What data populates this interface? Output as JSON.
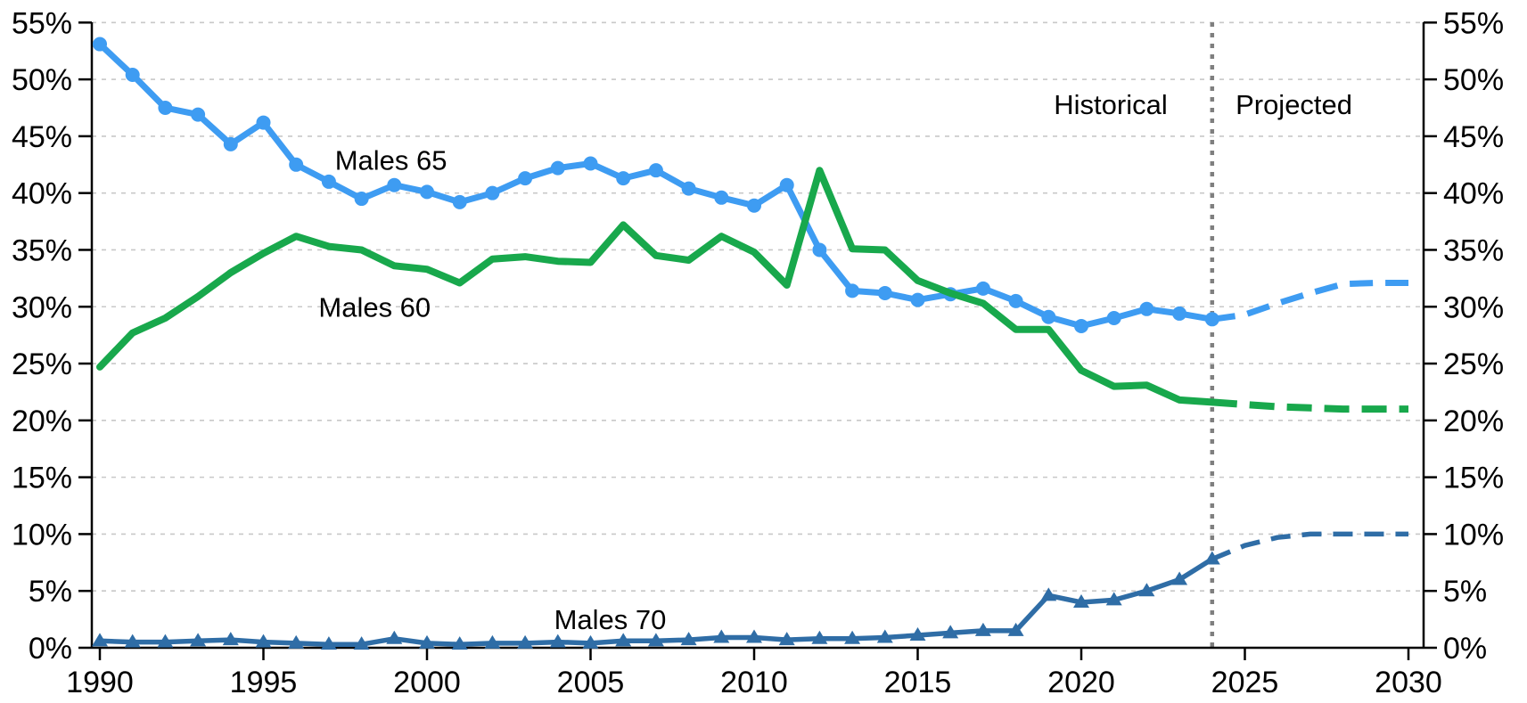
{
  "page": {
    "background": "#FFFFFF"
  },
  "chart_data": {
    "type": "line",
    "title": "",
    "x_axis": {
      "min": 1990,
      "max": 2030,
      "tick_years": [
        1990,
        1995,
        2000,
        2005,
        2010,
        2015,
        2020,
        2025,
        2030
      ],
      "tick_labels": [
        "1990",
        "1995",
        "2000",
        "2005",
        "2010",
        "2015",
        "2020",
        "2025",
        "2030"
      ]
    },
    "y_axis": {
      "min": 0,
      "max": 55,
      "tick_values": [
        0,
        5,
        10,
        15,
        20,
        25,
        30,
        35,
        40,
        45,
        50,
        55
      ],
      "tick_labels": [
        "0%",
        "5%",
        "10%",
        "15%",
        "20%",
        "25%",
        "30%",
        "35%",
        "40%",
        "45%",
        "50%",
        "55%"
      ],
      "labels_on_left": true,
      "labels_on_right": true
    },
    "grid": {
      "horizontal": true,
      "style": "dashed",
      "color": "#C8C8C8"
    },
    "divider": {
      "year": 2024,
      "style": "dotted",
      "color": "#7F7F7F"
    },
    "annotations": [
      {
        "text": "Males 65",
        "year": 1998.9,
        "value": 42.9
      },
      {
        "text": "Males 60",
        "year": 1998.4,
        "value": 30.0
      },
      {
        "text": "Males 70",
        "year": 2005.6,
        "value": 2.5
      },
      {
        "text": "Historical",
        "year": 2020.9,
        "value": 47.8
      },
      {
        "text": "Projected",
        "year": 2026.5,
        "value": 47.8
      }
    ],
    "series": [
      {
        "name": "Males 65",
        "color": "#3E9CF2",
        "marker": "circle",
        "line_width": 7,
        "historical": {
          "start_year": 1990,
          "end_year": 2024,
          "values": [
            53.1,
            50.4,
            47.5,
            46.9,
            44.3,
            46.2,
            42.5,
            41.0,
            39.5,
            40.7,
            40.1,
            39.2,
            40.0,
            41.3,
            42.2,
            42.6,
            41.3,
            42.0,
            40.4,
            39.6,
            38.9,
            40.7,
            35.0,
            31.4,
            31.2,
            30.6,
            31.1,
            31.6,
            30.5,
            29.1,
            28.3,
            29.0,
            29.8,
            29.4,
            28.9
          ]
        },
        "projected": {
          "start_year": 2024,
          "end_year": 2030,
          "values": [
            28.9,
            29.3,
            30.3,
            31.2,
            32.0,
            32.1,
            32.1
          ]
        }
      },
      {
        "name": "Males 60",
        "color": "#18A84C",
        "marker": "none",
        "line_width": 8,
        "historical": {
          "start_year": 1990,
          "end_year": 2024,
          "values": [
            24.7,
            27.7,
            29.0,
            30.9,
            33.0,
            34.7,
            36.2,
            35.3,
            35.0,
            33.6,
            33.3,
            32.1,
            34.2,
            34.4,
            34.0,
            33.9,
            37.2,
            34.5,
            34.1,
            36.2,
            34.8,
            31.9,
            42.0,
            35.1,
            35.0,
            32.3,
            31.2,
            30.3,
            28.0,
            28.0,
            24.4,
            23.0,
            23.1,
            21.8,
            21.6
          ]
        },
        "projected": {
          "start_year": 2024,
          "end_year": 2030,
          "values": [
            21.6,
            21.4,
            21.2,
            21.1,
            21.0,
            21.0,
            21.0
          ]
        }
      },
      {
        "name": "Males 70",
        "color": "#2F6DA6",
        "marker": "triangle",
        "line_width": 5.5,
        "historical": {
          "start_year": 1990,
          "end_year": 2024,
          "values": [
            0.6,
            0.5,
            0.5,
            0.6,
            0.7,
            0.5,
            0.4,
            0.3,
            0.3,
            0.8,
            0.4,
            0.3,
            0.4,
            0.4,
            0.5,
            0.4,
            0.6,
            0.6,
            0.7,
            0.9,
            0.9,
            0.7,
            0.8,
            0.8,
            0.9,
            1.1,
            1.3,
            1.5,
            1.5,
            4.6,
            4.0,
            4.2,
            5.0,
            6.0,
            7.8
          ]
        },
        "projected": {
          "start_year": 2024,
          "end_year": 2030,
          "values": [
            7.8,
            9.0,
            9.7,
            10.0,
            10.0,
            10.0,
            10.0
          ]
        }
      }
    ],
    "colors": {
      "axis": "#000000",
      "grid": "#C8C8C8",
      "divider": "#7F7F7F",
      "males_65": "#3E9CF2",
      "males_60": "#18A84C",
      "males_70": "#2F6DA6"
    }
  }
}
